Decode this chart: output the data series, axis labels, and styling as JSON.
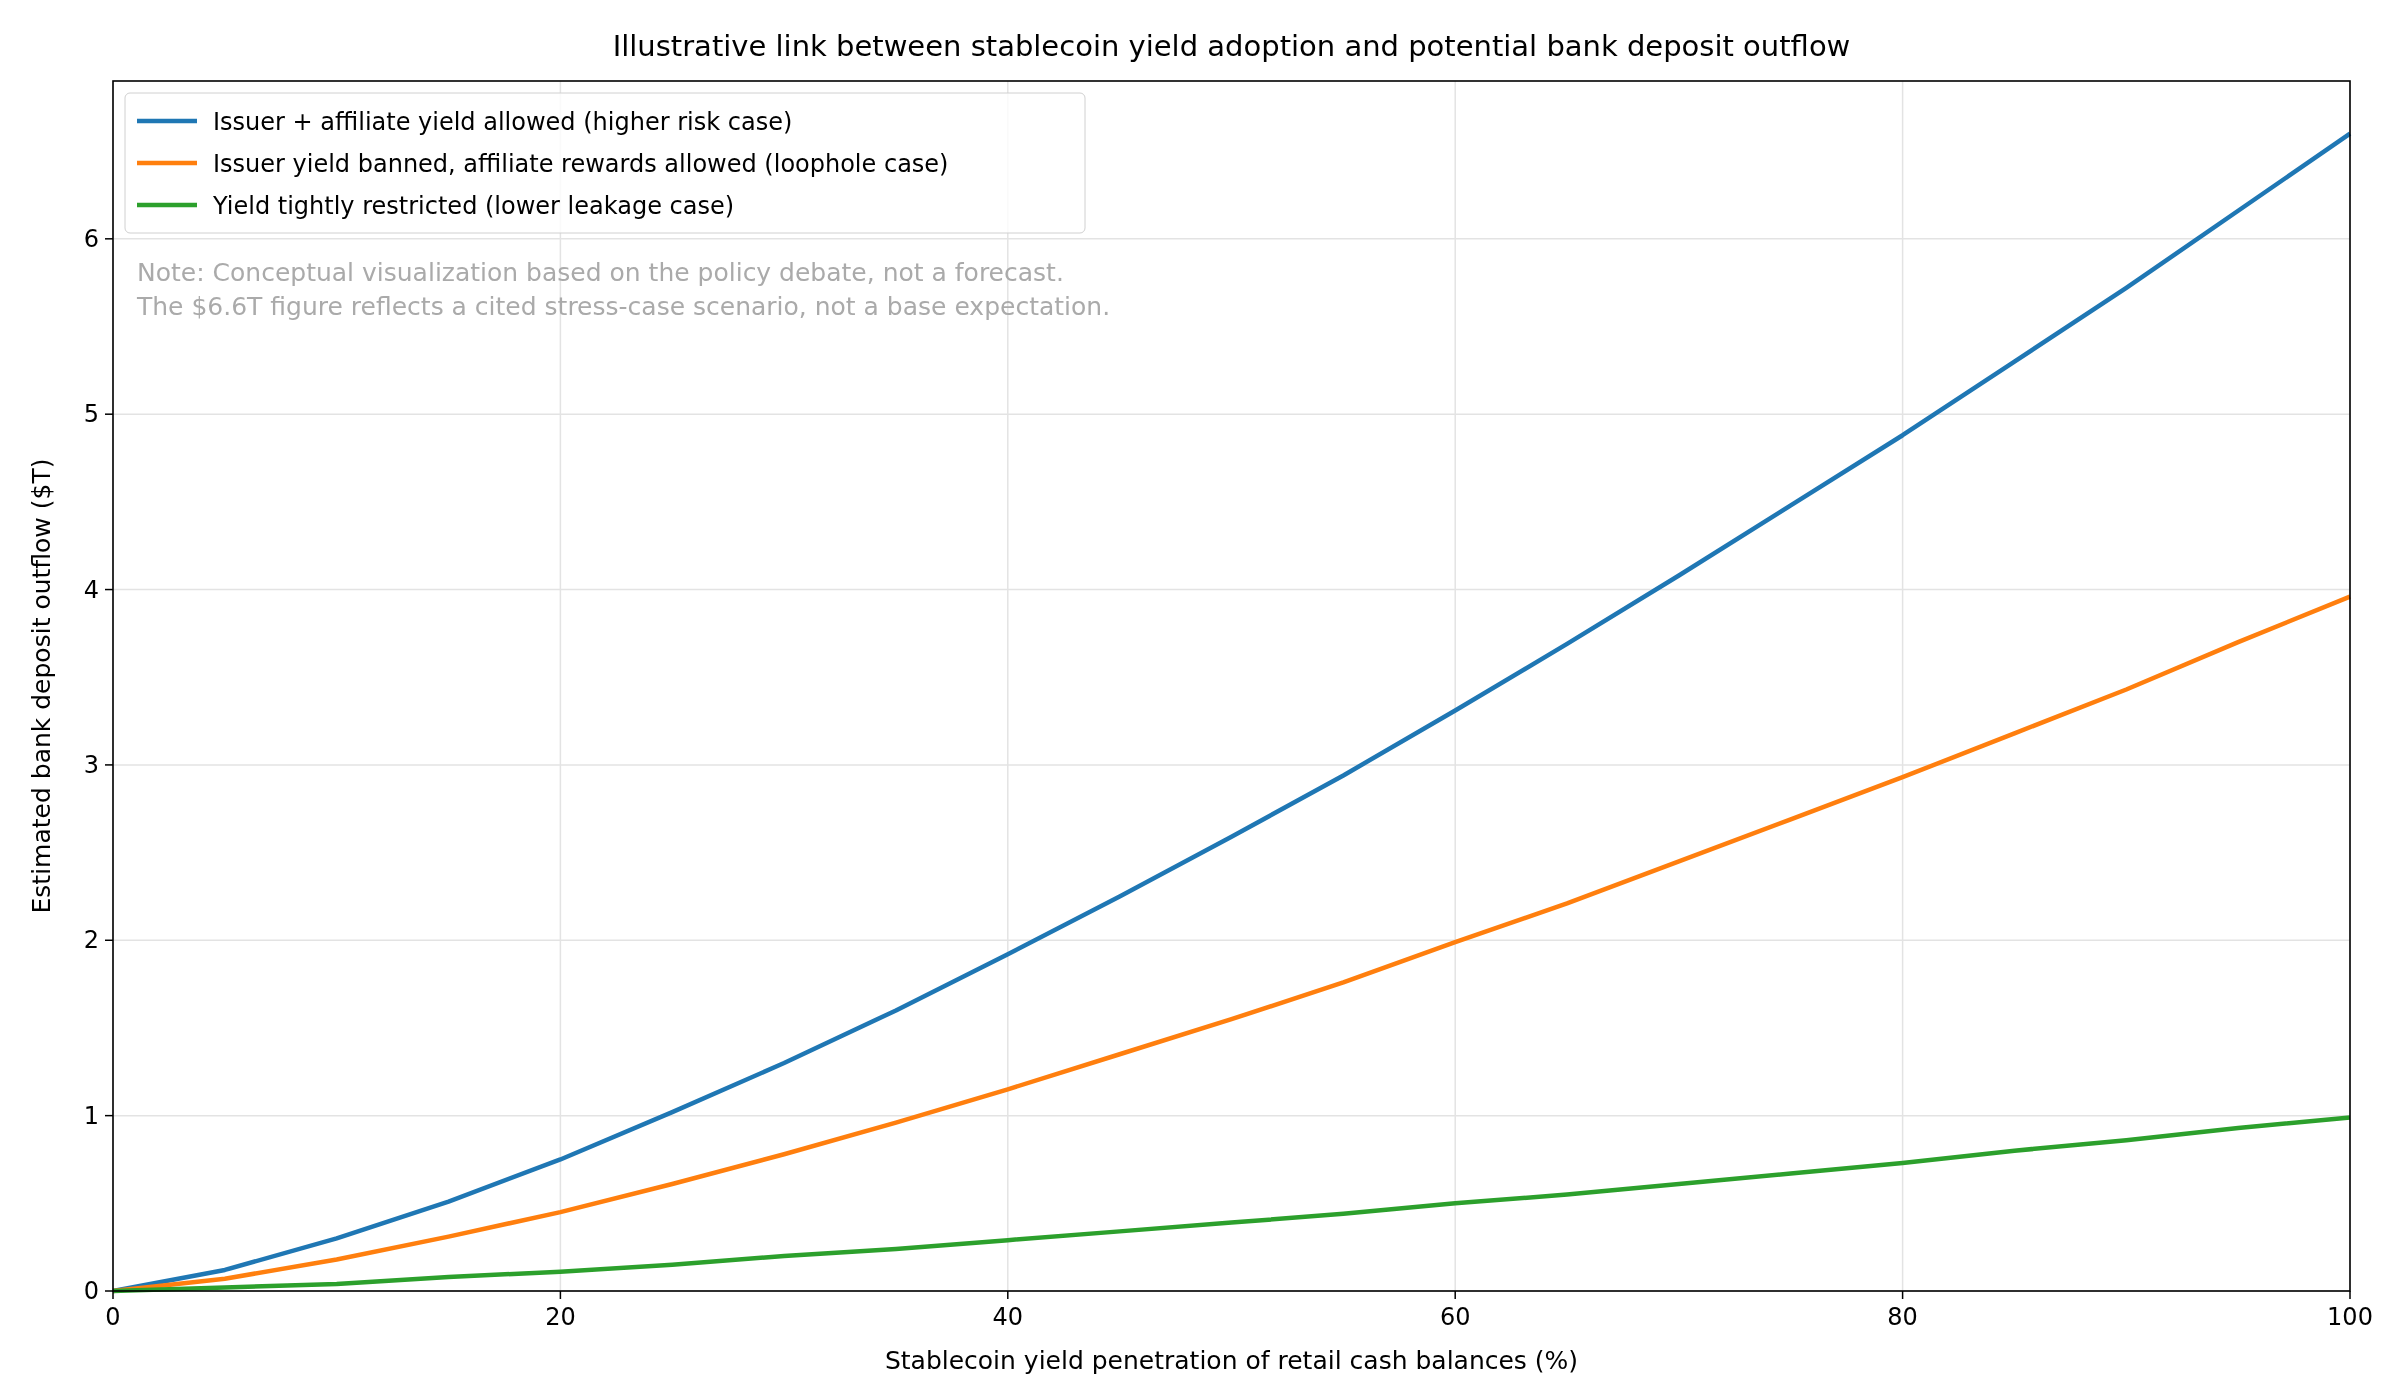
{
  "chart_data": {
    "type": "line",
    "title": "Illustrative link between stablecoin yield adoption and potential bank deposit outflow",
    "xlabel": "Stablecoin yield penetration of retail cash balances (%)",
    "ylabel": "Estimated bank deposit outflow ($T)",
    "x": [
      0,
      5,
      10,
      15,
      20,
      25,
      30,
      35,
      40,
      45,
      50,
      55,
      60,
      65,
      70,
      75,
      80,
      85,
      90,
      95,
      100
    ],
    "series": [
      {
        "name": "Issuer + affiliate yield allowed (higher risk case)",
        "color": "#1f77b4",
        "values": [
          0,
          0.12,
          0.3,
          0.51,
          0.75,
          1.02,
          1.3,
          1.6,
          1.92,
          2.25,
          2.59,
          2.94,
          3.31,
          3.69,
          4.08,
          4.48,
          4.88,
          5.3,
          5.72,
          6.16,
          6.6
        ]
      },
      {
        "name": "Issuer yield banned, affiliate rewards allowed (loophole case)",
        "color": "#ff7f0e",
        "values": [
          0,
          0.07,
          0.18,
          0.31,
          0.45,
          0.61,
          0.78,
          0.96,
          1.15,
          1.35,
          1.55,
          1.76,
          1.99,
          2.21,
          2.45,
          2.69,
          2.93,
          3.18,
          3.43,
          3.7,
          3.96
        ]
      },
      {
        "name": "Yield tightly restricted (lower leakage case)",
        "color": "#2ca02c",
        "values": [
          0,
          0.02,
          0.04,
          0.08,
          0.11,
          0.15,
          0.2,
          0.24,
          0.29,
          0.34,
          0.39,
          0.44,
          0.5,
          0.55,
          0.61,
          0.67,
          0.73,
          0.8,
          0.86,
          0.93,
          0.99
        ]
      }
    ],
    "xlim": [
      0,
      100
    ],
    "xticks": [
      0,
      20,
      40,
      60,
      80,
      100
    ],
    "ylim": [
      0,
      6.9
    ],
    "yticks": [
      0,
      1,
      2,
      3,
      4,
      5,
      6
    ],
    "grid": true,
    "legend": "top left",
    "annotations": [
      "Note: Conceptual visualization based on the policy debate, not a forecast.",
      "The $6.6T figure reflects a cited stress-case scenario, not a base expectation."
    ]
  }
}
